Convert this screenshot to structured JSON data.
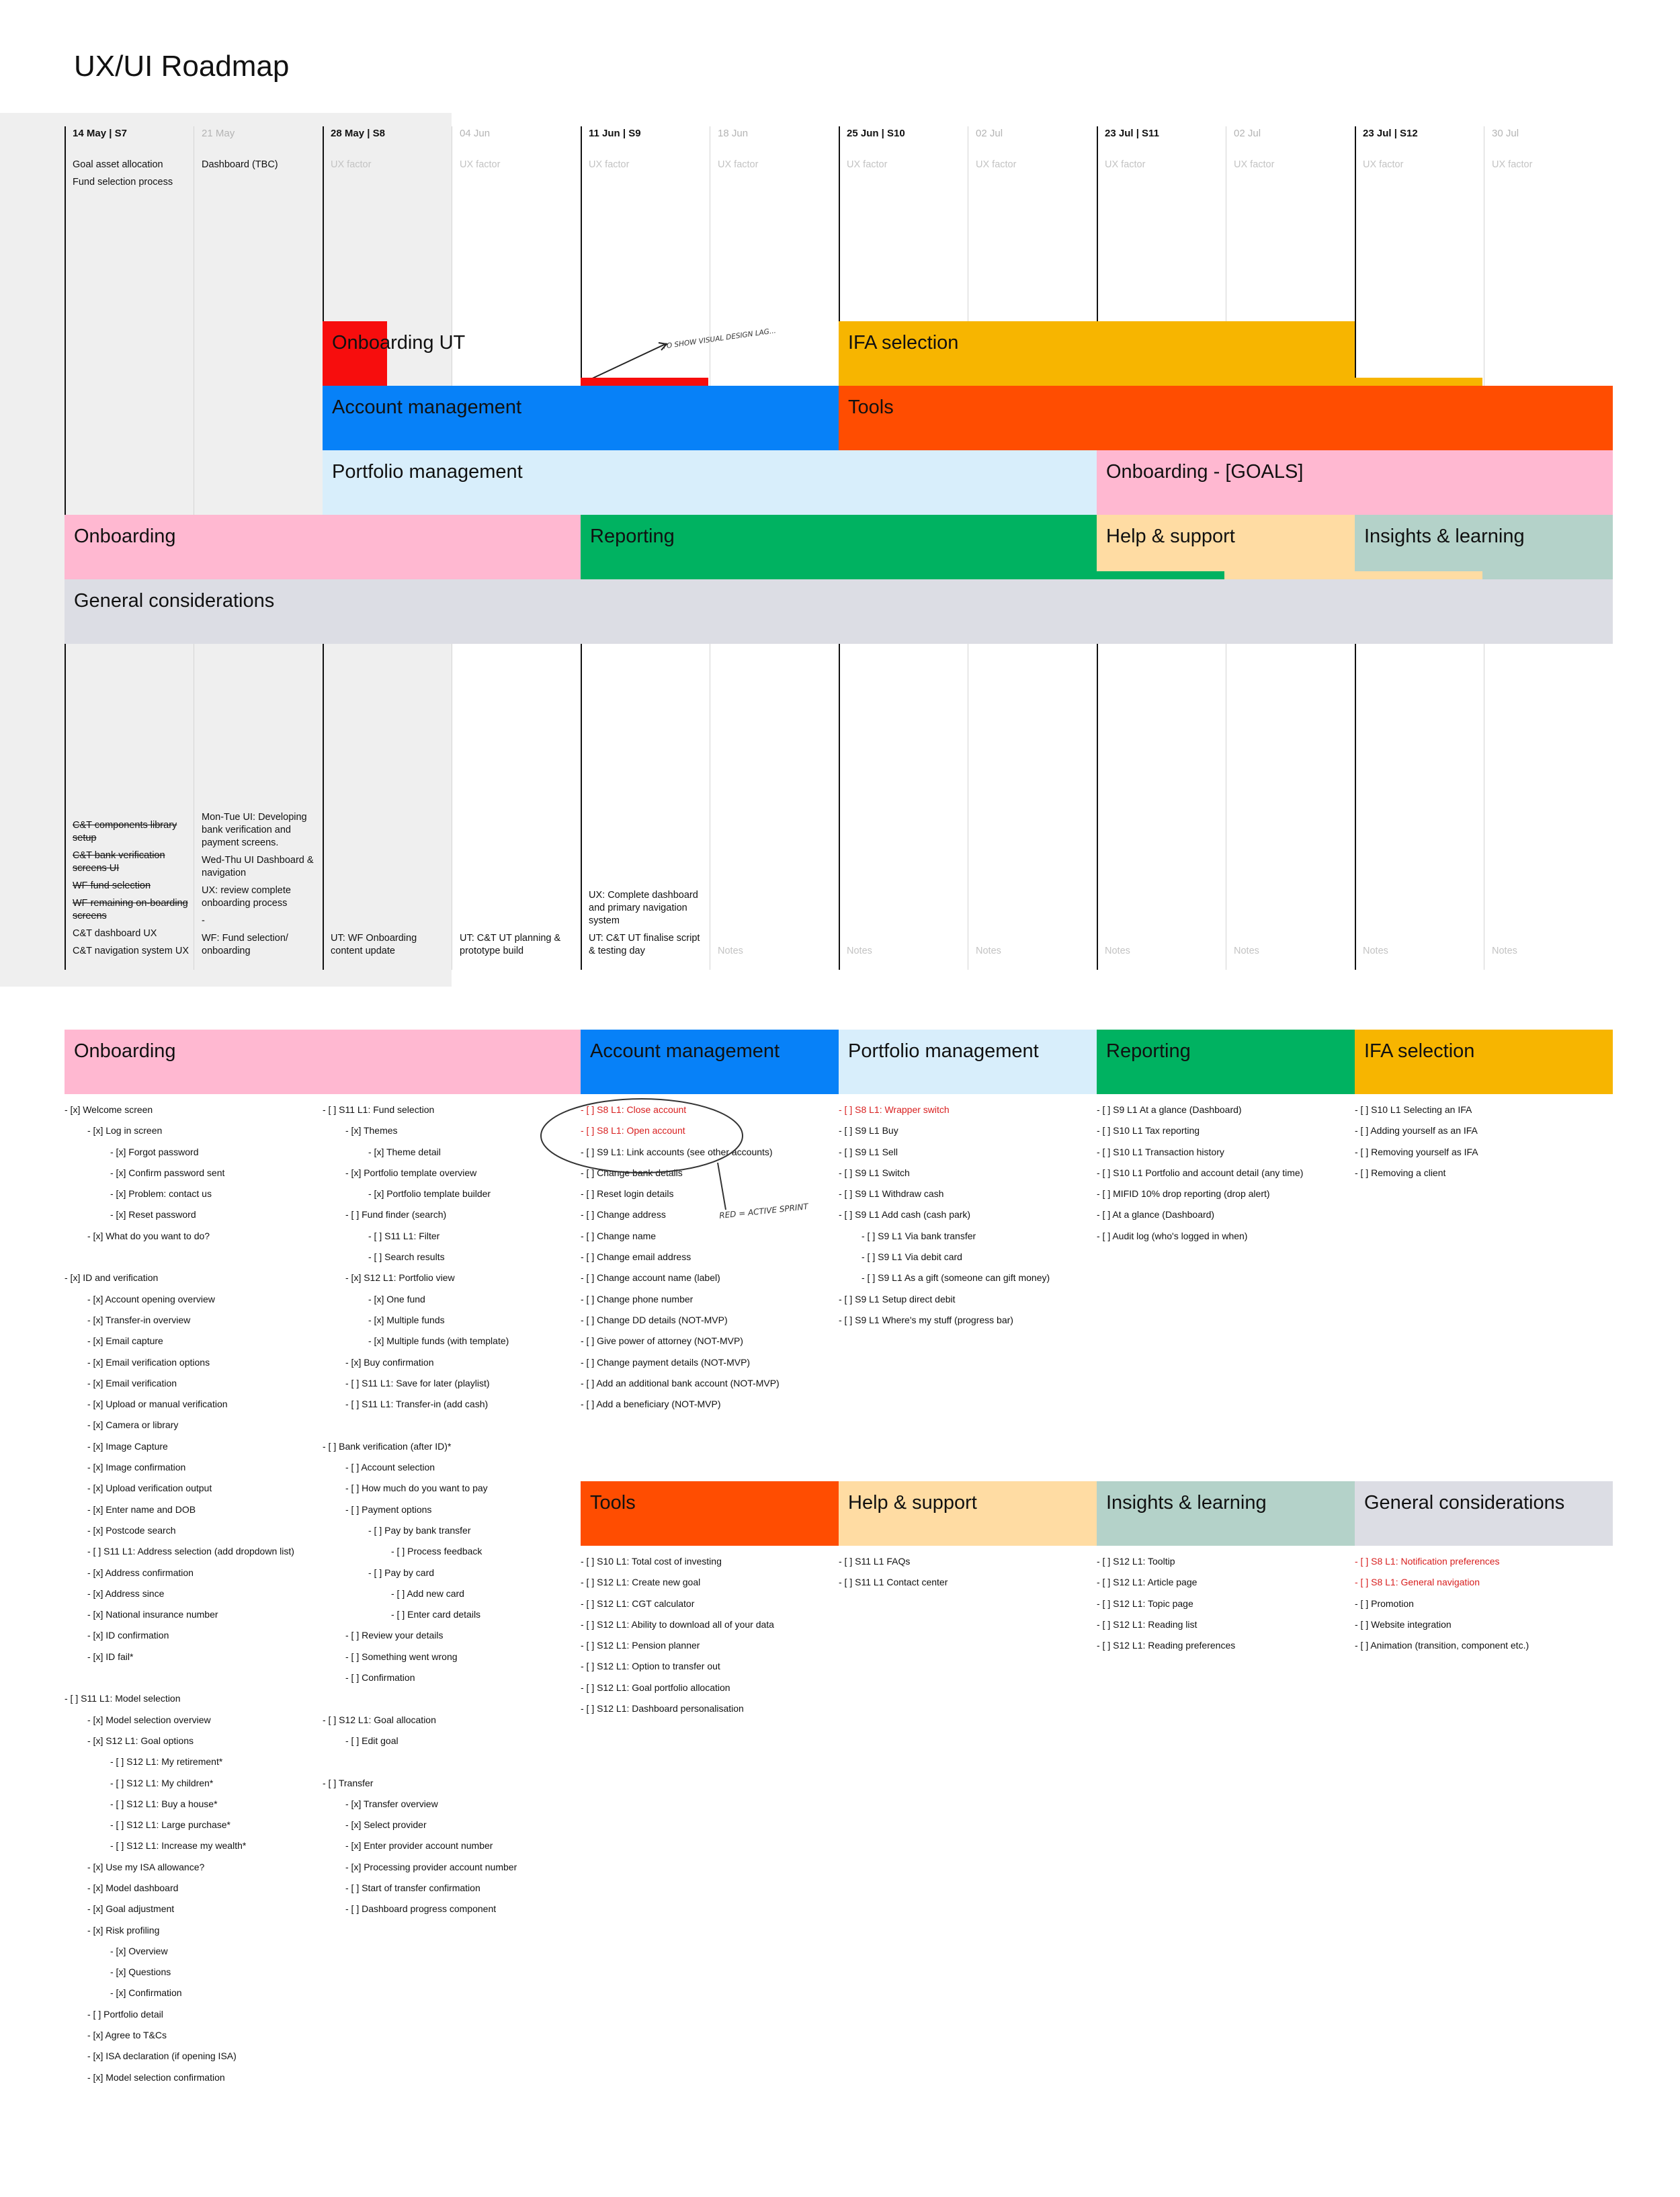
{
  "title": "UX/UI Roadmap",
  "columns": [
    {
      "date": "14 May | S7",
      "strong": true,
      "top": [
        "Goal asset allocation",
        "Fund selection process"
      ],
      "top_dim": false,
      "bottom": [
        {
          "text": "C&T components library setup",
          "strike": true
        },
        {
          "text": "C&T bank verification screens UI",
          "strike": true
        },
        {
          "text": "WF fund selection",
          "strike": true
        },
        {
          "text": "WF remaining on-boarding screens",
          "strike": true
        },
        {
          "text": "C&T dashboard UX",
          "strike": false
        },
        {
          "text": "C&T navigation system UX",
          "strike": false
        }
      ],
      "bottom_dim": false
    },
    {
      "date": "21 May",
      "strong": false,
      "top": [
        "Dashboard (TBC)"
      ],
      "top_dim": false,
      "bottom": [
        {
          "text": "Mon-Tue UI: Developing bank verification and payment screens.",
          "strike": false
        },
        {
          "text": "Wed-Thu UI Dashboard & navigation",
          "strike": false
        },
        {
          "text": "UX: review complete onboarding process",
          "strike": false
        },
        {
          "text": "-",
          "strike": false
        },
        {
          "text": "WF: Fund selection/ onboarding",
          "strike": false
        }
      ],
      "bottom_dim": false
    },
    {
      "date": "28 May | S8",
      "strong": true,
      "top": [
        "UX factor"
      ],
      "top_dim": true,
      "bottom": [
        {
          "text": "UT: WF Onboarding content update",
          "strike": false
        }
      ],
      "bottom_dim": false
    },
    {
      "date": "04 Jun",
      "strong": false,
      "top": [
        "UX factor"
      ],
      "top_dim": true,
      "bottom": [
        {
          "text": "UT: C&T UT planning & prototype build",
          "strike": false
        }
      ],
      "bottom_dim": false
    },
    {
      "date": "11 Jun | S9",
      "strong": true,
      "top": [
        "UX factor"
      ],
      "top_dim": true,
      "bottom": [
        {
          "text": "UX: Complete dashboard and primary navigation system",
          "strike": false
        },
        {
          "text": "UT: C&T UT finalise script & testing day",
          "strike": false
        }
      ],
      "bottom_dim": false
    },
    {
      "date": "18 Jun",
      "strong": false,
      "top": [
        "UX factor"
      ],
      "top_dim": true,
      "bottom": [
        {
          "text": "Notes",
          "strike": false
        }
      ],
      "bottom_dim": true
    },
    {
      "date": "25 Jun | S10",
      "strong": true,
      "top": [
        "UX factor"
      ],
      "top_dim": true,
      "bottom": [
        {
          "text": "Notes",
          "strike": false
        }
      ],
      "bottom_dim": true
    },
    {
      "date": "02 Jul",
      "strong": false,
      "top": [
        "UX factor"
      ],
      "top_dim": true,
      "bottom": [
        {
          "text": "Notes",
          "strike": false
        }
      ],
      "bottom_dim": true
    },
    {
      "date": "23 Jul | S11",
      "strong": true,
      "top": [
        "UX factor"
      ],
      "top_dim": true,
      "bottom": [
        {
          "text": "Notes",
          "strike": false
        }
      ],
      "bottom_dim": true
    },
    {
      "date": "02 Jul",
      "strong": false,
      "top": [
        "UX factor"
      ],
      "top_dim": true,
      "bottom": [
        {
          "text": "Notes",
          "strike": false
        }
      ],
      "bottom_dim": true
    },
    {
      "date": "23 Jul | S12",
      "strong": true,
      "top": [
        "UX factor"
      ],
      "top_dim": true,
      "bottom": [
        {
          "text": "Notes",
          "strike": false
        }
      ],
      "bottom_dim": true
    },
    {
      "date": "30 Jul",
      "strong": false,
      "top": [
        "UX factor"
      ],
      "top_dim": true,
      "bottom": [
        {
          "text": "Notes",
          "strike": false
        }
      ],
      "bottom_dim": true
    }
  ],
  "bars": [
    {
      "label": "Onboarding UT",
      "color": "#f70d0d"
    },
    {
      "label": "IFA selection",
      "color": "#f7b500"
    },
    {
      "label": "Account management",
      "color": "#0781f8"
    },
    {
      "label": "Tools",
      "color": "#ff4d01"
    },
    {
      "label": "Portfolio management",
      "color": "#d8eefb"
    },
    {
      "label": "Onboarding - [GOALS]",
      "color": "#ffb8d1"
    },
    {
      "label": "Onboarding",
      "color": "#ffb8d1"
    },
    {
      "label": "Reporting",
      "color": "#00b261"
    },
    {
      "label": "Help & support",
      "color": "#ffdca3"
    },
    {
      "label": "Insights & learning",
      "color": "#b4d2c9"
    },
    {
      "label": "General considerations",
      "color": "#dcdde4"
    }
  ],
  "annotations": {
    "design_lag": "TO SHOW VISUAL DESIGN LAG...",
    "active_sprint": "RED = ACTIVE SPRINT"
  },
  "backlog": {
    "onboarding": {
      "title": "Onboarding",
      "color": "#ffb8d1",
      "col1": [
        {
          "t": "- [x] Welcome screen",
          "i": 0
        },
        {
          "t": "- [x] Log in screen",
          "i": 1
        },
        {
          "t": "- [x] Forgot password",
          "i": 2
        },
        {
          "t": "- [x] Confirm password sent",
          "i": 2
        },
        {
          "t": "- [x] Problem: contact us",
          "i": 2
        },
        {
          "t": "- [x] Reset password",
          "i": 2
        },
        {
          "t": "- [x] What do you want to do?",
          "i": 1
        },
        {
          "t": "",
          "i": 0
        },
        {
          "t": "- [x] ID and verification",
          "i": 0
        },
        {
          "t": "- [x] Account opening overview",
          "i": 1
        },
        {
          "t": "- [x] Transfer-in overview",
          "i": 1
        },
        {
          "t": "- [x] Email capture",
          "i": 1
        },
        {
          "t": "- [x] Email verification options",
          "i": 1
        },
        {
          "t": "- [x] Email verification",
          "i": 1
        },
        {
          "t": "- [x] Upload or manual verification",
          "i": 1
        },
        {
          "t": "- [x] Camera or library",
          "i": 1
        },
        {
          "t": "- [x] Image Capture",
          "i": 1
        },
        {
          "t": "- [x] Image confirmation",
          "i": 1
        },
        {
          "t": "- [x] Upload verification output",
          "i": 1
        },
        {
          "t": "- [x] Enter name and DOB",
          "i": 1
        },
        {
          "t": "- [x] Postcode search",
          "i": 1
        },
        {
          "t": "- [ ] S11 L1: Address selection (add dropdown list)",
          "i": 1
        },
        {
          "t": "- [x] Address confirmation",
          "i": 1
        },
        {
          "t": "- [x] Address since",
          "i": 1
        },
        {
          "t": "- [x] National insurance number",
          "i": 1
        },
        {
          "t": "- [x] ID confirmation",
          "i": 1
        },
        {
          "t": "- [x] ID fail*",
          "i": 1
        },
        {
          "t": "",
          "i": 0
        },
        {
          "t": "- [ ] S11 L1: Model selection",
          "i": 0
        },
        {
          "t": "- [x] Model selection overview",
          "i": 1
        },
        {
          "t": "- [x] S12 L1: Goal options",
          "i": 1
        },
        {
          "t": "- [ ] S12 L1: My retirement*",
          "i": 2
        },
        {
          "t": "- [ ] S12 L1: My children*",
          "i": 2
        },
        {
          "t": "- [ ] S12 L1: Buy a house*",
          "i": 2
        },
        {
          "t": "- [ ] S12 L1: Large purchase*",
          "i": 2
        },
        {
          "t": "- [ ] S12 L1: Increase my wealth*",
          "i": 2
        },
        {
          "t": "- [x] Use my ISA allowance?",
          "i": 1
        },
        {
          "t": "- [x] Model dashboard",
          "i": 1
        },
        {
          "t": "- [x] Goal adjustment",
          "i": 1
        },
        {
          "t": "- [x] Risk profiling",
          "i": 1
        },
        {
          "t": "- [x] Overview",
          "i": 2
        },
        {
          "t": "- [x] Questions",
          "i": 2
        },
        {
          "t": "- [x] Confirmation",
          "i": 2
        },
        {
          "t": "- [ ] Portfolio detail",
          "i": 1
        },
        {
          "t": "- [x] Agree to T&Cs",
          "i": 1
        },
        {
          "t": "- [x] ISA declaration (if opening ISA)",
          "i": 1
        },
        {
          "t": "- [x] Model selection confirmation",
          "i": 1
        }
      ],
      "col2": [
        {
          "t": "- [ ] S11 L1: Fund selection",
          "i": 0
        },
        {
          "t": "- [x] Themes",
          "i": 1
        },
        {
          "t": "- [x] Theme detail",
          "i": 2
        },
        {
          "t": "- [x] Portfolio template overview",
          "i": 1
        },
        {
          "t": "- [x] Portfolio template builder",
          "i": 2
        },
        {
          "t": "- [ ] Fund finder (search)",
          "i": 1
        },
        {
          "t": "- [ ] S11 L1: Filter",
          "i": 2
        },
        {
          "t": "- [ ] Search results",
          "i": 2
        },
        {
          "t": "- [x] S12 L1: Portfolio view",
          "i": 1
        },
        {
          "t": "- [x] One fund",
          "i": 2
        },
        {
          "t": "- [x] Multiple funds",
          "i": 2
        },
        {
          "t": "- [x] Multiple funds (with template)",
          "i": 2
        },
        {
          "t": "- [x] Buy confirmation",
          "i": 1
        },
        {
          "t": "- [ ] S11 L1: Save for later (playlist)",
          "i": 1
        },
        {
          "t": "- [ ] S11 L1: Transfer-in (add cash)",
          "i": 1
        },
        {
          "t": "",
          "i": 0
        },
        {
          "t": "- [ ] Bank verification (after ID)*",
          "i": 0
        },
        {
          "t": "- [ ] Account selection",
          "i": 1
        },
        {
          "t": "- [ ] How much do you want to pay",
          "i": 1
        },
        {
          "t": "- [ ] Payment options",
          "i": 1
        },
        {
          "t": "- [ ] Pay by bank transfer",
          "i": 2
        },
        {
          "t": "- [ ] Process feedback",
          "i": 3
        },
        {
          "t": "- [ ] Pay by card",
          "i": 2
        },
        {
          "t": "- [ ] Add new card",
          "i": 3
        },
        {
          "t": "- [ ] Enter card details",
          "i": 3
        },
        {
          "t": "- [ ] Review your details",
          "i": 1
        },
        {
          "t": "- [ ] Something went wrong",
          "i": 1
        },
        {
          "t": "- [ ] Confirmation",
          "i": 1
        },
        {
          "t": "",
          "i": 0
        },
        {
          "t": "- [ ] S12 L1: Goal allocation",
          "i": 0
        },
        {
          "t": "- [ ] Edit goal",
          "i": 1
        },
        {
          "t": "",
          "i": 0
        },
        {
          "t": "- [ ] Transfer",
          "i": 0
        },
        {
          "t": "- [x] Transfer overview",
          "i": 1
        },
        {
          "t": "- [x] Select provider",
          "i": 1
        },
        {
          "t": "- [x] Enter provider account number",
          "i": 1
        },
        {
          "t": "- [x] Processing provider account number",
          "i": 1
        },
        {
          "t": "- [ ] Start of transfer confirmation",
          "i": 1
        },
        {
          "t": "- [ ] Dashboard progress component",
          "i": 1
        }
      ]
    },
    "account": {
      "title": "Account management",
      "color": "#0781f8",
      "items": [
        {
          "t": "- [ ] S8 L1: Close account",
          "i": 0,
          "red": true
        },
        {
          "t": "- [ ] S8 L1: Open account",
          "i": 0,
          "red": true
        },
        {
          "t": "- [ ] S9 L1: Link accounts (see other accounts)",
          "i": 0
        },
        {
          "t": "- [ ] Change bank details",
          "i": 0
        },
        {
          "t": "- [ ] Reset login details",
          "i": 0
        },
        {
          "t": "- [ ] Change address",
          "i": 0
        },
        {
          "t": "- [ ] Change name",
          "i": 0
        },
        {
          "t": "- [ ] Change email address",
          "i": 0
        },
        {
          "t": "- [ ] Change account name (label)",
          "i": 0
        },
        {
          "t": "- [ ] Change phone number",
          "i": 0
        },
        {
          "t": "- [ ] Change DD details (NOT-MVP)",
          "i": 0
        },
        {
          "t": "- [ ] Give power of attorney  (NOT-MVP)",
          "i": 0
        },
        {
          "t": "- [ ] Change payment details (NOT-MVP)",
          "i": 0
        },
        {
          "t": "- [ ] Add an additional bank account  (NOT-MVP)",
          "i": 0
        },
        {
          "t": "- [ ] Add a beneficiary  (NOT-MVP)",
          "i": 0
        }
      ]
    },
    "portfolio": {
      "title": "Portfolio management",
      "color": "#d8eefb",
      "items": [
        {
          "t": "- [ ] S8 L1: Wrapper switch",
          "i": 0,
          "red": true
        },
        {
          "t": "- [ ] S9 L1 Buy",
          "i": 0
        },
        {
          "t": "- [ ] S9 L1 Sell",
          "i": 0
        },
        {
          "t": "- [ ] S9 L1 Switch",
          "i": 0
        },
        {
          "t": "- [ ] S9 L1 Withdraw cash",
          "i": 0
        },
        {
          "t": "- [ ] S9 L1 Add cash (cash park)",
          "i": 0
        },
        {
          "t": "- [ ] S9 L1 Via bank transfer",
          "i": 1
        },
        {
          "t": "- [ ] S9 L1 Via debit card",
          "i": 1
        },
        {
          "t": "- [ ] S9 L1 As a gift (someone can gift money)",
          "i": 1
        },
        {
          "t": "- [ ] S9 L1 Setup direct debit",
          "i": 0
        },
        {
          "t": "- [ ] S9 L1 Where's my stuff (progress bar)",
          "i": 0
        }
      ]
    },
    "reporting": {
      "title": "Reporting",
      "color": "#00b261",
      "items": [
        {
          "t": "- [ ] S9 L1 At a glance (Dashboard)",
          "i": 0
        },
        {
          "t": "- [ ] S10 L1 Tax reporting",
          "i": 0
        },
        {
          "t": "- [ ] S10 L1 Transaction history",
          "i": 0
        },
        {
          "t": "- [ ] S10 L1 Portfolio and account detail (any time)",
          "i": 0
        },
        {
          "t": "- [ ] MIFID 10% drop reporting (drop alert)",
          "i": 0
        },
        {
          "t": "- [ ] At a glance (Dashboard)",
          "i": 0
        },
        {
          "t": "- [ ] Audit log (who's logged in when)",
          "i": 0
        }
      ]
    },
    "ifa": {
      "title": "IFA selection",
      "color": "#f7b500",
      "items": [
        {
          "t": "- [ ] S10 L1 Selecting an IFA",
          "i": 0
        },
        {
          "t": "- [ ] Adding yourself as an IFA",
          "i": 0
        },
        {
          "t": "- [ ] Removing yourself as IFA",
          "i": 0
        },
        {
          "t": "- [ ] Removing a client",
          "i": 0
        }
      ]
    },
    "tools": {
      "title": "Tools",
      "color": "#ff4d01",
      "items": [
        {
          "t": "- [ ] S10 L1: Total cost of investing",
          "i": 0
        },
        {
          "t": "- [ ] S12 L1: Create new goal",
          "i": 0
        },
        {
          "t": "- [ ] S12 L1: CGT calculator",
          "i": 0
        },
        {
          "t": "- [ ] S12 L1: Ability to download all of your data",
          "i": 0
        },
        {
          "t": "- [ ] S12 L1: Pension planner",
          "i": 0
        },
        {
          "t": "- [ ] S12 L1: Option to transfer out",
          "i": 0
        },
        {
          "t": "- [ ] S12 L1: Goal portfolio allocation",
          "i": 0
        },
        {
          "t": "- [ ] S12 L1: Dashboard personalisation",
          "i": 0
        }
      ]
    },
    "help": {
      "title": "Help & support",
      "color": "#ffdca3",
      "items": [
        {
          "t": "- [ ] S11 L1 FAQs",
          "i": 0
        },
        {
          "t": "- [ ] S11 L1 Contact center",
          "i": 0
        }
      ]
    },
    "insights": {
      "title": "Insights & learning",
      "color": "#b4d2c9",
      "items": [
        {
          "t": "- [ ] S12 L1: Tooltip",
          "i": 0
        },
        {
          "t": "- [ ] S12 L1: Article page",
          "i": 0
        },
        {
          "t": "- [ ] S12 L1: Topic page",
          "i": 0
        },
        {
          "t": "- [ ] S12 L1: Reading list",
          "i": 0
        },
        {
          "t": "- [ ] S12 L1: Reading preferences",
          "i": 0
        }
      ]
    },
    "general": {
      "title": "General considerations",
      "color": "#dcdde4",
      "items": [
        {
          "t": "- [ ] S8 L1: Notification preferences",
          "i": 0,
          "red": true
        },
        {
          "t": "- [ ] S8 L1: General navigation",
          "i": 0,
          "red": true
        },
        {
          "t": "- [ ] Promotion",
          "i": 0
        },
        {
          "t": "- [ ] Website integration",
          "i": 0
        },
        {
          "t": "- [ ] Animation (transition, component etc.)",
          "i": 0
        }
      ]
    }
  }
}
